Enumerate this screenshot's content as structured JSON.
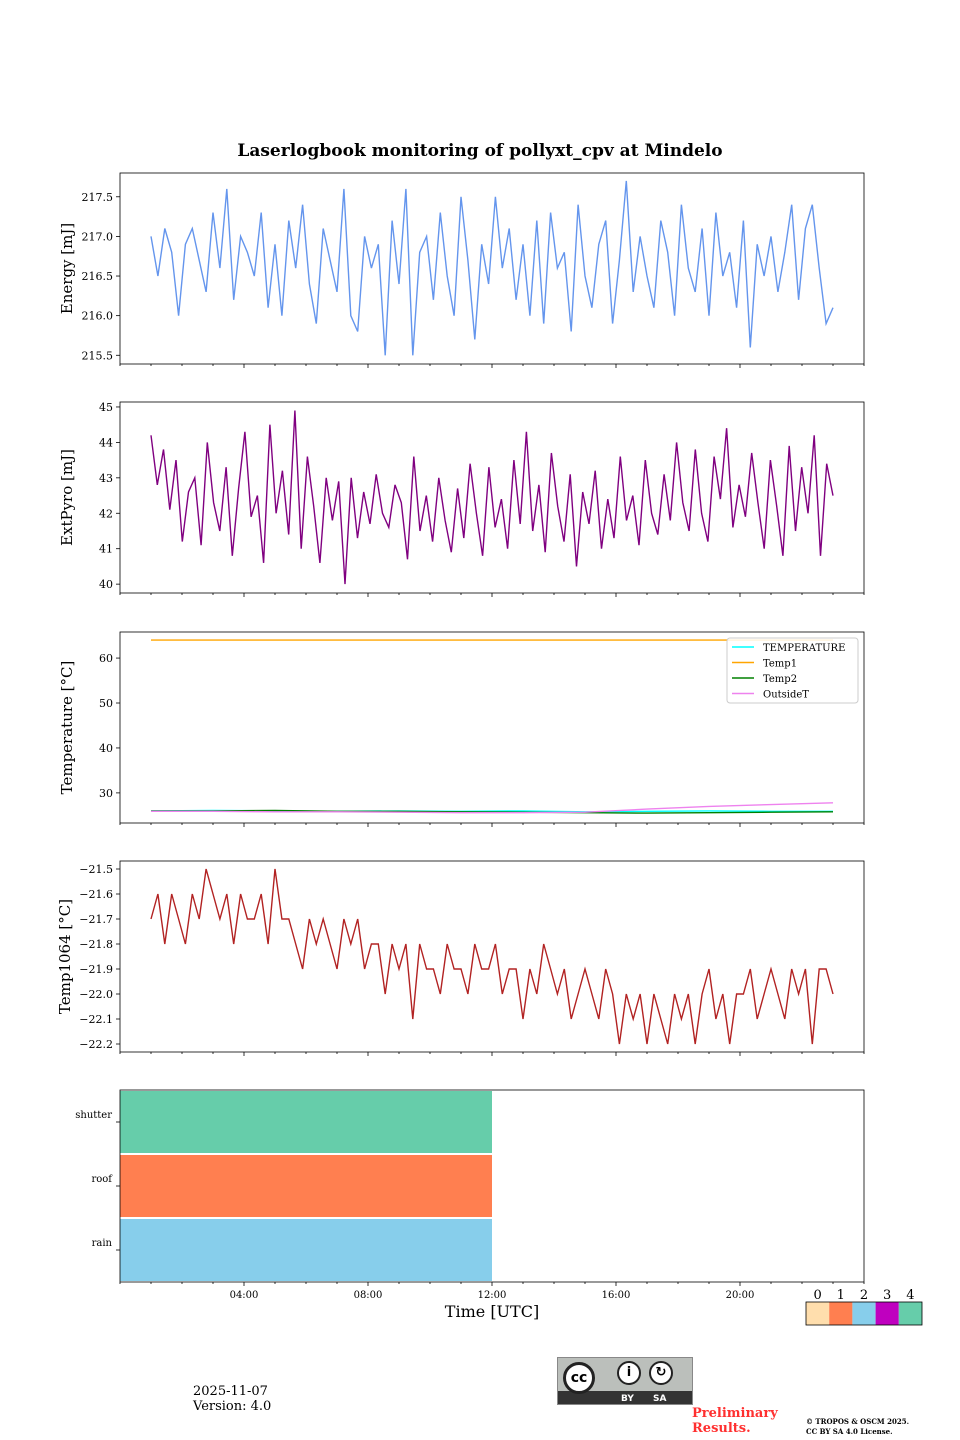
{
  "title": "Laserlogbook monitoring of pollyxt_cpv at Mindelo",
  "chart_data": [
    {
      "type": "line",
      "ylabel": "Energy [mJ]",
      "ylim": [
        215.39,
        217.8
      ],
      "yticks": [
        215.5,
        216.0,
        216.5,
        217.0,
        217.5
      ],
      "ytick_labels": [
        "215.5",
        "216.0",
        "216.5",
        "217.0",
        "217.5"
      ],
      "x_start_hours": 1.0,
      "x_end_hours": 23.0,
      "series": [
        {
          "name": "Energy",
          "color": "#6495ED",
          "values": [
            217.0,
            216.5,
            217.1,
            216.8,
            216.0,
            216.9,
            217.1,
            216.7,
            216.3,
            217.3,
            216.6,
            217.6,
            216.2,
            217.0,
            216.8,
            216.5,
            217.3,
            216.1,
            216.9,
            216.0,
            217.2,
            216.6,
            217.4,
            216.4,
            215.9,
            217.1,
            216.7,
            216.3,
            217.6,
            216.0,
            215.8,
            217.0,
            216.6,
            216.9,
            215.5,
            217.2,
            216.4,
            217.6,
            215.5,
            216.8,
            217.0,
            216.2,
            217.3,
            216.5,
            216.0,
            217.5,
            216.7,
            215.7,
            216.9,
            216.4,
            217.5,
            216.6,
            217.1,
            216.2,
            216.9,
            216.0,
            217.2,
            215.9,
            217.3,
            216.6,
            216.8,
            215.8,
            217.4,
            216.5,
            216.1,
            216.9,
            217.2,
            215.9,
            216.7,
            217.7,
            216.3,
            217.0,
            216.5,
            216.1,
            217.2,
            216.8,
            216.0,
            217.4,
            216.6,
            216.3,
            217.1,
            216.0,
            217.3,
            216.5,
            216.8,
            216.1,
            217.2,
            215.6,
            216.9,
            216.5,
            217.0,
            216.3,
            216.8,
            217.4,
            216.2,
            217.1,
            217.4,
            216.6,
            215.9,
            216.1
          ]
        }
      ]
    },
    {
      "type": "line",
      "ylabel": "ExtPyro [mJ]",
      "ylim": [
        39.75,
        45.14
      ],
      "yticks": [
        40,
        41,
        42,
        43,
        44,
        45
      ],
      "ytick_labels": [
        "40",
        "41",
        "42",
        "43",
        "44",
        "45"
      ],
      "x_start_hours": 1.0,
      "x_end_hours": 23.0,
      "series": [
        {
          "name": "ExtPyro",
          "color": "#800080",
          "values": [
            44.2,
            42.8,
            43.8,
            42.1,
            43.5,
            41.2,
            42.6,
            43.0,
            41.1,
            44.0,
            42.3,
            41.5,
            43.3,
            40.8,
            42.7,
            44.3,
            41.9,
            42.5,
            40.6,
            44.5,
            42.0,
            43.2,
            41.4,
            44.9,
            41.0,
            43.6,
            42.2,
            40.6,
            43.0,
            41.8,
            42.9,
            40.0,
            43.0,
            41.3,
            42.6,
            41.7,
            43.1,
            42.0,
            41.6,
            42.8,
            42.3,
            40.7,
            43.6,
            41.5,
            42.5,
            41.2,
            43.0,
            41.8,
            40.9,
            42.7,
            41.3,
            43.4,
            42.0,
            40.8,
            43.3,
            41.6,
            42.4,
            41.0,
            43.5,
            41.7,
            44.3,
            41.5,
            42.8,
            40.9,
            43.7,
            42.2,
            41.2,
            43.1,
            40.5,
            42.6,
            41.7,
            43.2,
            41.0,
            42.4,
            41.3,
            43.6,
            41.8,
            42.5,
            41.1,
            43.5,
            42.0,
            41.4,
            43.1,
            41.8,
            44.0,
            42.3,
            41.5,
            43.8,
            42.0,
            41.2,
            43.6,
            42.4,
            44.4,
            41.6,
            42.8,
            41.9,
            43.7,
            42.3,
            41.0,
            43.5,
            42.2,
            40.8,
            43.9,
            41.5,
            43.3,
            42.0,
            44.2,
            40.8,
            43.4,
            42.5
          ]
        }
      ]
    },
    {
      "type": "line",
      "ylabel": "Temperature [°C]",
      "ylim": [
        23.3,
        65.8
      ],
      "yticks": [
        30,
        40,
        50,
        60
      ],
      "ytick_labels": [
        "30",
        "40",
        "50",
        "60"
      ],
      "x_start_hours": 1.0,
      "x_end_hours": 23.0,
      "legend": "upper-right",
      "series": [
        {
          "name": "TEMPERATURE",
          "color": "#00FFFF",
          "values": [
            26.0,
            26.1,
            26.0,
            25.9,
            26.0,
            25.9,
            26.0,
            25.8,
            25.9,
            26.0,
            25.9,
            25.9
          ]
        },
        {
          "name": "Temp1",
          "color": "#FFA500",
          "values": [
            64,
            64,
            64,
            64,
            64,
            64,
            64,
            64,
            64,
            64,
            64,
            64
          ]
        },
        {
          "name": "Temp2",
          "color": "#008000",
          "values": [
            26.0,
            26.0,
            26.1,
            25.9,
            25.9,
            25.8,
            25.7,
            25.6,
            25.5,
            25.6,
            25.7,
            25.8
          ]
        },
        {
          "name": "OutsideT",
          "color": "#EE82EE",
          "values": [
            25.9,
            25.9,
            25.8,
            25.8,
            25.7,
            25.6,
            25.6,
            25.7,
            26.4,
            27.0,
            27.4,
            27.8
          ]
        }
      ]
    },
    {
      "type": "line",
      "ylabel": "Temp1064 [°C]",
      "ylim": [
        -22.232,
        -21.468
      ],
      "yticks": [
        -22.2,
        -22.1,
        -22.0,
        -21.9,
        -21.8,
        -21.7,
        -21.6,
        -21.5
      ],
      "ytick_labels": [
        "−22.2",
        "−22.1",
        "−22.0",
        "−21.9",
        "−21.8",
        "−21.7",
        "−21.6",
        "−21.5"
      ],
      "x_start_hours": 1.0,
      "x_end_hours": 23.0,
      "series": [
        {
          "name": "Temp1064",
          "color": "#B22222",
          "values": [
            -21.7,
            -21.6,
            -21.8,
            -21.6,
            -21.7,
            -21.8,
            -21.6,
            -21.7,
            -21.5,
            -21.6,
            -21.7,
            -21.6,
            -21.8,
            -21.6,
            -21.7,
            -21.7,
            -21.6,
            -21.8,
            -21.5,
            -21.7,
            -21.7,
            -21.8,
            -21.9,
            -21.7,
            -21.8,
            -21.7,
            -21.8,
            -21.9,
            -21.7,
            -21.8,
            -21.7,
            -21.9,
            -21.8,
            -21.8,
            -22.0,
            -21.8,
            -21.9,
            -21.8,
            -22.1,
            -21.8,
            -21.9,
            -21.9,
            -22.0,
            -21.8,
            -21.9,
            -21.9,
            -22.0,
            -21.8,
            -21.9,
            -21.9,
            -21.8,
            -22.0,
            -21.9,
            -21.9,
            -22.1,
            -21.9,
            -22.0,
            -21.8,
            -21.9,
            -22.0,
            -21.9,
            -22.1,
            -22.0,
            -21.9,
            -22.0,
            -22.1,
            -21.9,
            -22.0,
            -22.2,
            -22.0,
            -22.1,
            -22.0,
            -22.2,
            -22.0,
            -22.1,
            -22.2,
            -22.0,
            -22.1,
            -22.0,
            -22.2,
            -22.0,
            -21.9,
            -22.1,
            -22.0,
            -22.2,
            -22.0,
            -22.0,
            -21.9,
            -22.1,
            -22.0,
            -21.9,
            -22.0,
            -22.1,
            -21.9,
            -22.0,
            -21.9,
            -22.2,
            -21.9,
            -21.9,
            -22.0
          ]
        }
      ]
    },
    {
      "type": "heatmap",
      "rows": [
        "rain",
        "roof",
        "shutter"
      ],
      "segments": [
        {
          "row": "shutter",
          "start_hours": 0,
          "end_hours": 12,
          "value": 4
        },
        {
          "row": "roof",
          "start_hours": 0,
          "end_hours": 12,
          "value": 1
        },
        {
          "row": "rain",
          "start_hours": 0,
          "end_hours": 12,
          "value": 2
        }
      ],
      "colorbar": {
        "labels": [
          "0",
          "1",
          "2",
          "3",
          "4"
        ],
        "colors": [
          "#FFDEAD",
          "#FF7F50",
          "#87CEEB",
          "#BF00BF",
          "#66CDAA"
        ]
      },
      "xlabel": "Time [UTC]",
      "xlim_hours": [
        0,
        24
      ],
      "xticks_hours": [
        4,
        8,
        12,
        16,
        20
      ],
      "xtick_labels": [
        "04:00",
        "08:00",
        "12:00",
        "16:00",
        "20:00"
      ]
    }
  ],
  "footer": {
    "date": "2025-11-07",
    "version": "Version: 4.0",
    "preliminary_line1": "Preliminary",
    "preliminary_line2": "Results.",
    "copyright_line1": "© TROPOS & OSCM 2025.",
    "copyright_line2": "CC BY SA 4.0 License.",
    "license_badge_by": "BY",
    "license_badge_sa": "SA"
  }
}
